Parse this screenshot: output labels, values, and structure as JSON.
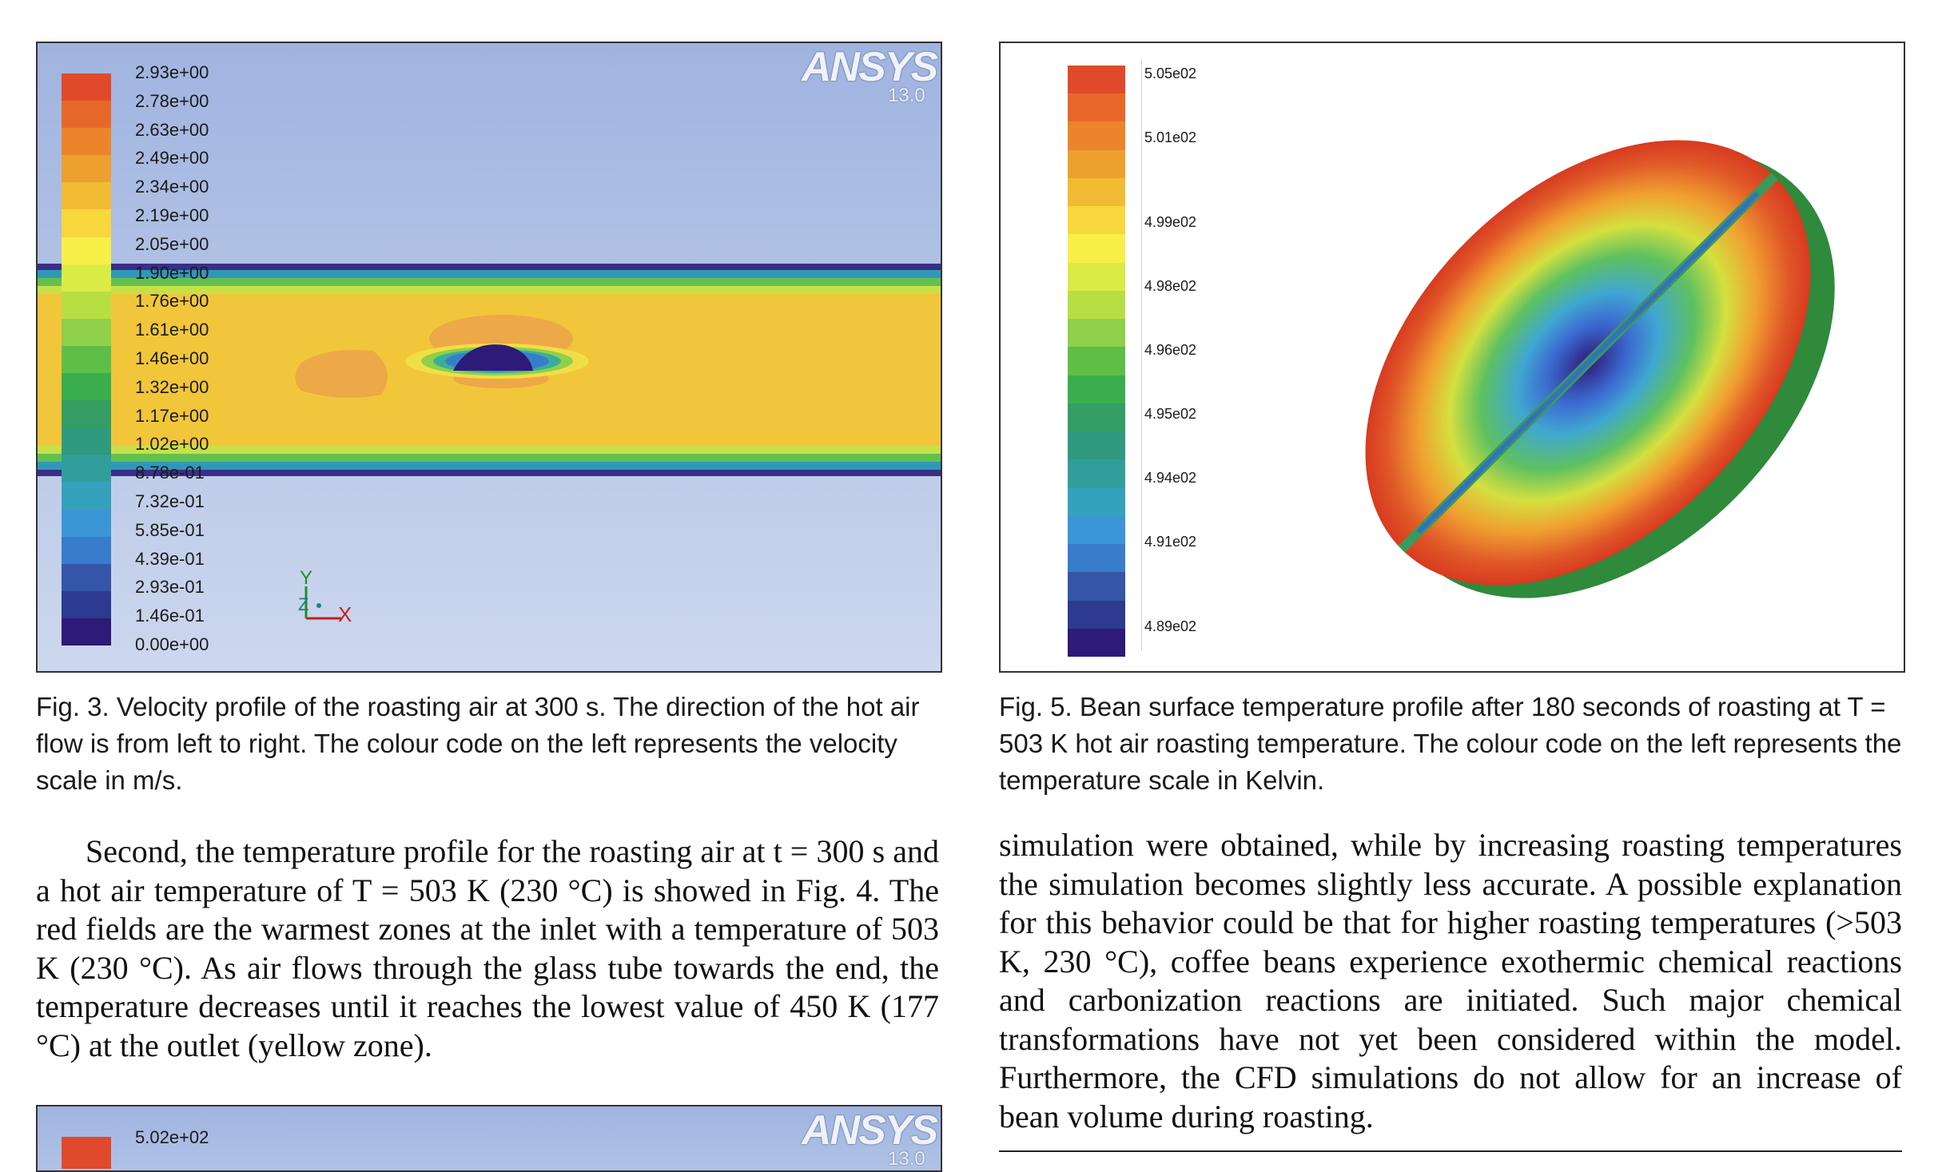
{
  "fig3": {
    "logo": "ANSYS",
    "version": "13.0",
    "legend_ticks": [
      "2.93e+00",
      "2.78e+00",
      "2.63e+00",
      "2.49e+00",
      "2.34e+00",
      "2.19e+00",
      "2.05e+00",
      "1.90e+00",
      "1.76e+00",
      "1.61e+00",
      "1.46e+00",
      "1.32e+00",
      "1.17e+00",
      "1.02e+00",
      "8.78e-01",
      "7.32e-01",
      "5.85e-01",
      "4.39e-01",
      "2.93e-01",
      "1.46e-01",
      "0.00e+00"
    ],
    "legend_colors": [
      "#e04a2a",
      "#e8682a",
      "#ec842c",
      "#eda02e",
      "#f2bb34",
      "#f7d73c",
      "#f8ef48",
      "#dcea46",
      "#b9de44",
      "#8fd04a",
      "#5ebe48",
      "#3aae4e",
      "#349e64",
      "#2f9a7e",
      "#319e9c",
      "#34a2bc",
      "#3a96d6",
      "#3a7ccc",
      "#3455a8",
      "#2c3a90",
      "#2e1a78"
    ],
    "axes": {
      "y": "Y",
      "z": "Z",
      "x": "X"
    },
    "caption": "Fig. 3. Velocity profile of the roasting air at 300 s. The direction of the hot air flow is from left to right. The colour code on the left represents the velocity scale in m/s."
  },
  "fig5": {
    "legend_ticks": [
      "5.05e02",
      "5.01e02",
      "4.99e02",
      "4.98e02",
      "4.96e02",
      "4.95e02",
      "4.94e02",
      "4.91e02",
      "4.89e02"
    ],
    "legend_colors": [
      "#e04a2a",
      "#e8682a",
      "#ec842c",
      "#eda02e",
      "#f2bb34",
      "#f7d73c",
      "#f8ef48",
      "#dcea46",
      "#b9de44",
      "#8fd04a",
      "#5ebe48",
      "#3aae4e",
      "#349e64",
      "#2f9a7e",
      "#319e9c",
      "#34a2bc",
      "#3a96d6",
      "#3a7ccc",
      "#3455a8",
      "#2c3a90",
      "#2e1a78"
    ],
    "caption": "Fig. 5. Bean surface temperature profile after 180 seconds of roasting at T = 503 K hot air roasting temperature. The colour code on the left represents the temperature scale in Kelvin."
  },
  "left_text": "Second, the temperature profile for the roasting air at t = 300 s and a hot air temperature of T = 503 K (230 °C) is showed in Fig. 4. The red fields are the warmest zones at the inlet with a temperature of 503 K (230 °C). As air flows through the glass tube towards the end, the temperature decreases until it reaches the lowest value of 450 K (177 °C) at the outlet (yellow zone).",
  "right_text": "simulation were obtained, while by increasing roasting temperatures the simulation becomes slightly less accurate. A possible explanation for this behavior could be that for higher roasting temperatures (>503 K, 230 °C), coffee beans experience exothermic chemical reactions and carbonization reactions are initiated. Such major chemical transformations have not yet been considered within the model. Furthermore, the CFD simulations do not allow for an increase of bean volume during roasting.",
  "fig4_partial": {
    "logo": "ANSYS",
    "first_tick": "5.02e+02",
    "version": "13.0"
  }
}
